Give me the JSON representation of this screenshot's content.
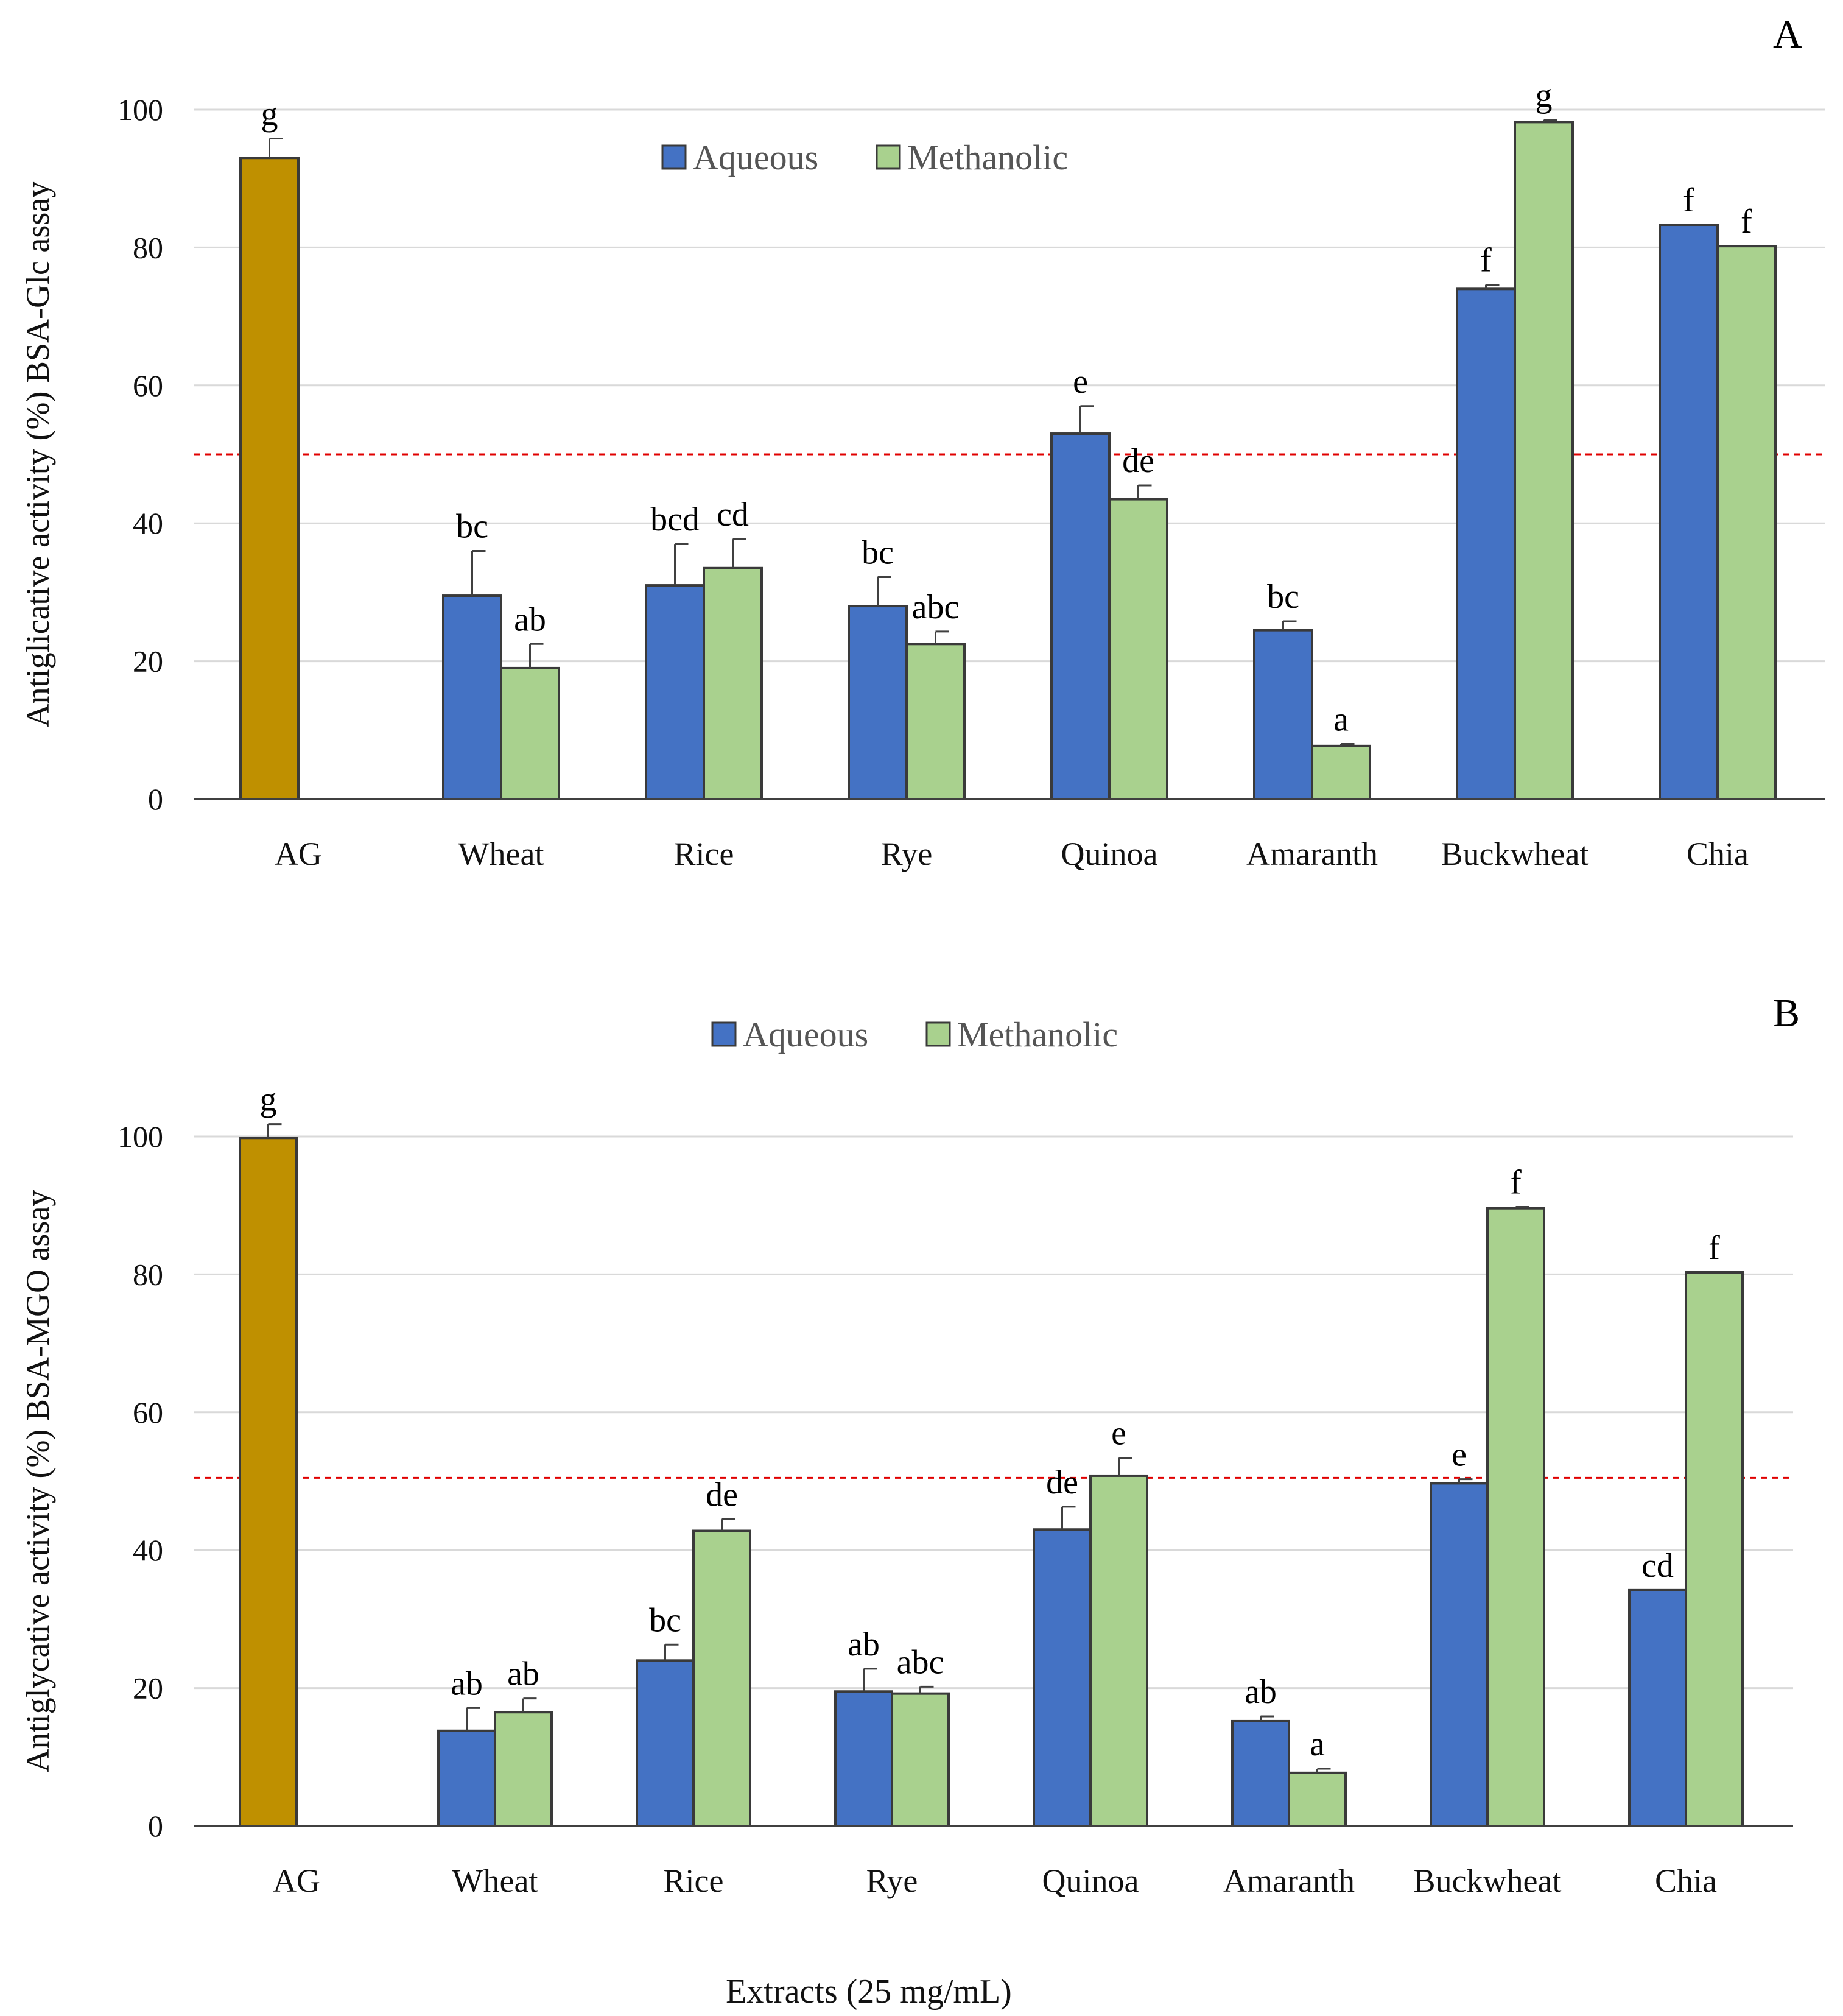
{
  "xlabel": "Extracts (25 mg/mL)",
  "colors": {
    "aqueous": "#4472c4",
    "methanolic": "#a9d18e",
    "ag": "#bf9000",
    "reference": "#e00000",
    "grid": "#d9d9d9"
  },
  "chart_data": [
    {
      "type": "bar",
      "panel": "A",
      "ylabel": "Antiglicative activity (%) BSA-Glc assay",
      "ylim": [
        0,
        100
      ],
      "yticks": [
        0,
        20,
        40,
        60,
        80,
        100
      ],
      "reference_line": 50,
      "legend": [
        "Aqueous",
        "Methanolic"
      ],
      "categories": [
        "AG",
        "Wheat",
        "Rice",
        "Rye",
        "Quinoa",
        "Amaranth",
        "Buckwheat",
        "Chia"
      ],
      "ag": {
        "value": 93,
        "error": 2.8,
        "label": "g"
      },
      "series": [
        {
          "name": "Aqueous",
          "values": [
            null,
            29.5,
            31,
            28,
            53,
            24.5,
            74,
            83.3
          ],
          "errors": [
            null,
            6.5,
            6,
            4.2,
            4,
            1.3,
            0.6,
            0
          ],
          "labels": [
            null,
            "bc",
            "bcd",
            "bc",
            "e",
            "bc",
            "f",
            "f"
          ]
        },
        {
          "name": "Methanolic",
          "values": [
            null,
            19,
            33.5,
            22.5,
            43.5,
            7.7,
            98.2,
            80.2
          ],
          "errors": [
            null,
            3.5,
            4.2,
            1.8,
            2,
            0.3,
            0.3,
            0
          ],
          "labels": [
            null,
            "ab",
            "cd",
            "abc",
            "de",
            "a",
            "g",
            "f"
          ]
        }
      ]
    },
    {
      "type": "bar",
      "panel": "B",
      "ylabel": "Antiglycative activity (%) BSA-MGO assay",
      "ylim": [
        0,
        100
      ],
      "yticks": [
        0,
        20,
        40,
        60,
        80,
        100
      ],
      "reference_line": 50.5,
      "legend": [
        "Aqueous",
        "Methanolic"
      ],
      "categories": [
        "AG",
        "Wheat",
        "Rice",
        "Rye",
        "Quinoa",
        "Amaranth",
        "Buckwheat",
        "Chia"
      ],
      "ag": {
        "value": 99.8,
        "error": 2,
        "label": "g"
      },
      "series": [
        {
          "name": "Aqueous",
          "values": [
            null,
            13.8,
            24,
            19.5,
            43,
            15.2,
            49.7,
            34.2
          ],
          "errors": [
            null,
            3.3,
            2.3,
            3.3,
            3.3,
            0.7,
            0.6,
            0
          ],
          "labels": [
            null,
            "ab",
            "bc",
            "ab",
            "de",
            "ab",
            "e",
            "cd"
          ]
        },
        {
          "name": "Methanolic",
          "values": [
            null,
            16.5,
            42.8,
            19.2,
            50.8,
            7.7,
            89.6,
            80.3
          ],
          "errors": [
            null,
            2,
            1.7,
            1,
            2.6,
            0.6,
            0.2,
            0
          ],
          "labels": [
            null,
            "ab",
            "de",
            "abc",
            "e",
            "a",
            "f",
            "f"
          ]
        }
      ]
    }
  ]
}
